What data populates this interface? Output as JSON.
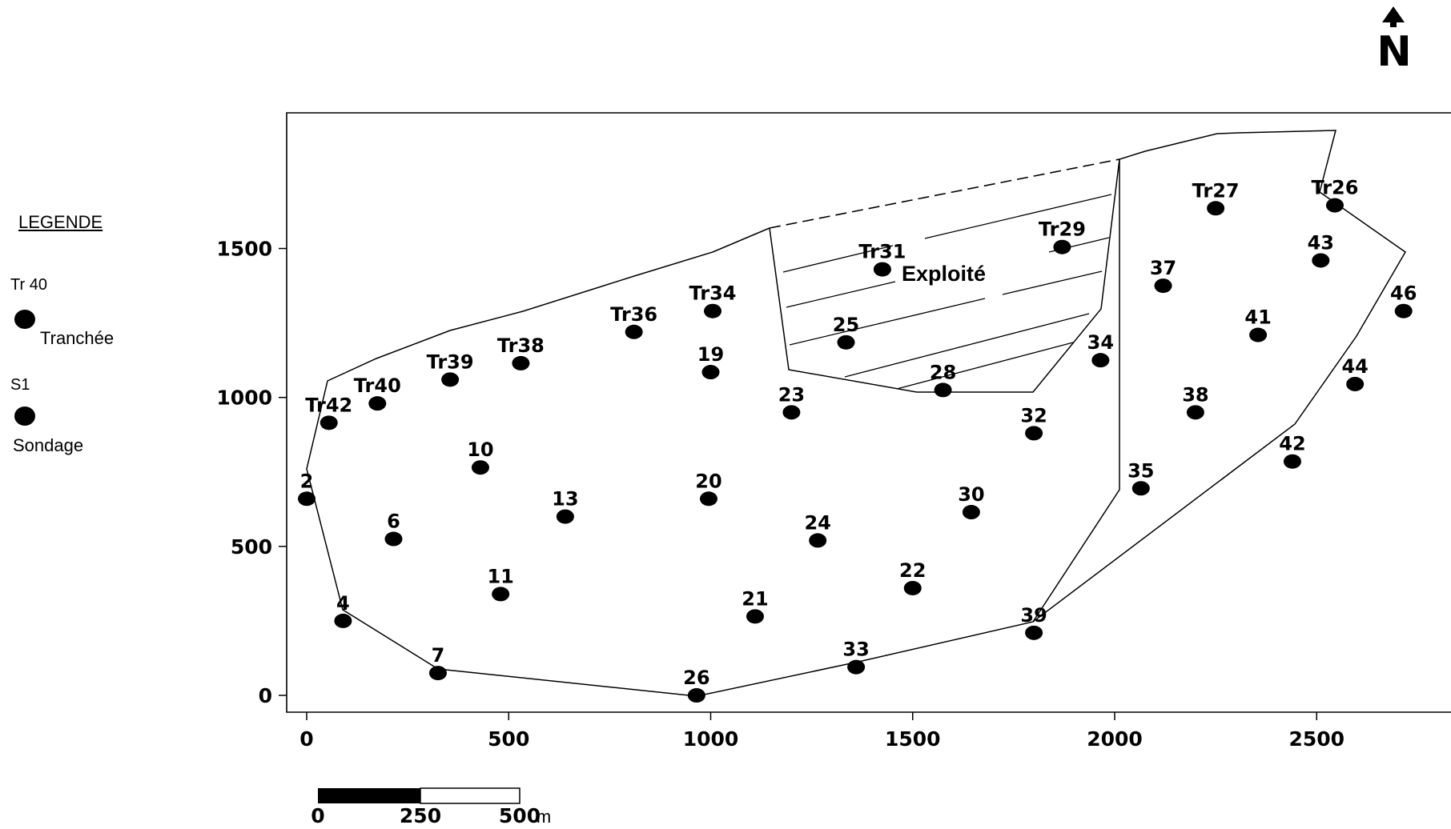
{
  "legend": {
    "title": "LEGENDE",
    "trench_code": "Tr 40",
    "trench_label": "Tranchée",
    "borehole_code": "S1",
    "borehole_label": "Sondage"
  },
  "north_arrow": {
    "letter": "N"
  },
  "zone_label": "Exploité",
  "scale_bar": {
    "ticks": [
      "0",
      "250",
      "500"
    ],
    "unit": "m"
  },
  "axes": {
    "x_ticks": [
      0,
      500,
      1000,
      1500,
      2000,
      2500
    ],
    "y_ticks": [
      0,
      500,
      1000,
      1500
    ]
  },
  "points": [
    {
      "id": "Tr42",
      "x": 55,
      "y": 915
    },
    {
      "id": "Tr40",
      "x": 175,
      "y": 980
    },
    {
      "id": "Tr39",
      "x": 355,
      "y": 1060
    },
    {
      "id": "Tr38",
      "x": 530,
      "y": 1115
    },
    {
      "id": "Tr36",
      "x": 810,
      "y": 1220
    },
    {
      "id": "Tr34",
      "x": 1005,
      "y": 1290
    },
    {
      "id": "Tr31",
      "x": 1425,
      "y": 1430
    },
    {
      "id": "Tr29",
      "x": 1870,
      "y": 1505
    },
    {
      "id": "Tr27",
      "x": 2250,
      "y": 1635
    },
    {
      "id": "Tr26",
      "x": 2545,
      "y": 1645
    },
    {
      "id": "43",
      "x": 2510,
      "y": 1460
    },
    {
      "id": "46",
      "x": 2715,
      "y": 1290
    },
    {
      "id": "44",
      "x": 2595,
      "y": 1045
    },
    {
      "id": "42",
      "x": 2440,
      "y": 785
    },
    {
      "id": "37",
      "x": 2120,
      "y": 1375
    },
    {
      "id": "41",
      "x": 2355,
      "y": 1210
    },
    {
      "id": "38",
      "x": 2200,
      "y": 950
    },
    {
      "id": "35",
      "x": 2065,
      "y": 695
    },
    {
      "id": "34",
      "x": 1965,
      "y": 1125
    },
    {
      "id": "32",
      "x": 1800,
      "y": 880
    },
    {
      "id": "28",
      "x": 1575,
      "y": 1025
    },
    {
      "id": "25",
      "x": 1335,
      "y": 1185
    },
    {
      "id": "23",
      "x": 1200,
      "y": 950
    },
    {
      "id": "19",
      "x": 1000,
      "y": 1085
    },
    {
      "id": "10",
      "x": 430,
      "y": 765
    },
    {
      "id": "2",
      "x": 0,
      "y": 660
    },
    {
      "id": "6",
      "x": 215,
      "y": 525
    },
    {
      "id": "13",
      "x": 640,
      "y": 600
    },
    {
      "id": "20",
      "x": 995,
      "y": 660
    },
    {
      "id": "24",
      "x": 1265,
      "y": 520
    },
    {
      "id": "30",
      "x": 1645,
      "y": 615
    },
    {
      "id": "22",
      "x": 1500,
      "y": 360
    },
    {
      "id": "11",
      "x": 480,
      "y": 340
    },
    {
      "id": "21",
      "x": 1110,
      "y": 265
    },
    {
      "id": "4",
      "x": 90,
      "y": 250
    },
    {
      "id": "7",
      "x": 325,
      "y": 75
    },
    {
      "id": "26",
      "x": 965,
      "y": 0
    },
    {
      "id": "33",
      "x": 1360,
      "y": 95
    },
    {
      "id": "39",
      "x": 1800,
      "y": 210
    }
  ]
}
